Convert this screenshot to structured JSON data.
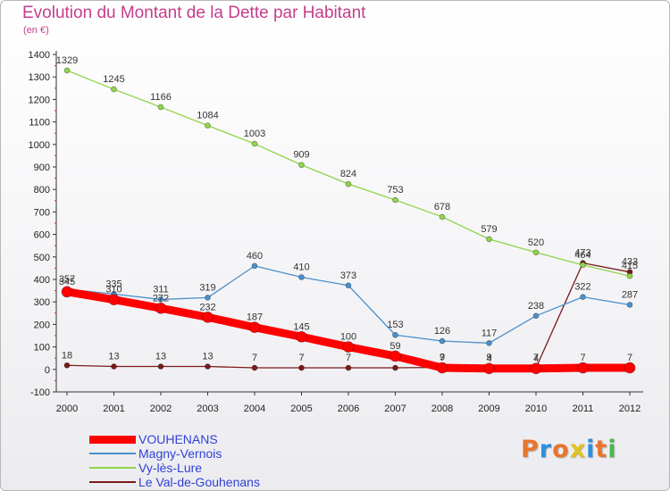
{
  "logo": {
    "text": "Proxiti",
    "colors": [
      "#e8752d",
      "#2d8fe0",
      "#e8752d",
      "#e0c31f",
      "#2d8fe0",
      "#e8752d",
      "#46b84a"
    ]
  },
  "chart_data": {
    "type": "line",
    "title": "Evolution du Montant de la Dette par Habitant",
    "subtitle": "(en €)",
    "xlabel": "",
    "ylabel": "",
    "x": [
      "2000",
      "2001",
      "2002",
      "2003",
      "2004",
      "2005",
      "2006",
      "2007",
      "2008",
      "2009",
      "2010",
      "2011",
      "2012"
    ],
    "ylim": [
      -100,
      1400
    ],
    "yticks": [
      -100,
      0,
      100,
      200,
      300,
      400,
      500,
      600,
      700,
      800,
      900,
      1000,
      1100,
      1200,
      1300,
      1400
    ],
    "grid": false,
    "legend_position": "bottom-left",
    "series": [
      {
        "name": "Le Val-de-Gouhenans",
        "color": "#7a1a1a",
        "values": [
          18,
          13,
          13,
          13,
          7,
          7,
          7,
          7,
          9,
          9,
          7,
          473,
          433
        ],
        "labels": [
          "18",
          "13",
          "13",
          "13",
          "7",
          "7",
          "7",
          "7",
          "9",
          "9",
          "7",
          "473",
          "433"
        ]
      },
      {
        "name": "Vy-lès-Lure",
        "color": "#8fd44a",
        "values": [
          1329,
          1245,
          1166,
          1084,
          1003,
          909,
          824,
          753,
          678,
          579,
          520,
          464,
          415
        ],
        "labels": [
          "1329",
          "1245",
          "1166",
          "1084",
          "1003",
          "909",
          "824",
          "753",
          "678",
          "579",
          "520",
          "464",
          "415"
        ]
      },
      {
        "name": "Magny-Vernois",
        "color": "#4a8fcc",
        "values": [
          357,
          335,
          311,
          319,
          460,
          410,
          373,
          153,
          126,
          117,
          238,
          322,
          287
        ],
        "labels": [
          "357",
          "335",
          "311",
          "319",
          "460",
          "410",
          "373",
          "153",
          "126",
          "117",
          "238",
          "322",
          "287"
        ]
      },
      {
        "name": "VOUHENANS",
        "color": "#ff0000",
        "values": [
          345,
          310,
          272,
          232,
          187,
          145,
          100,
          59,
          7,
          4,
          4,
          7,
          7
        ],
        "labels": [
          "345",
          "310",
          "272",
          "232",
          "187",
          "145",
          "100",
          "59",
          "7",
          "4",
          "4",
          "7",
          "7"
        ]
      }
    ],
    "legend_order": [
      "VOUHENANS",
      "Magny-Vernois",
      "Vy-lès-Lure",
      "Le Val-de-Gouhenans"
    ]
  }
}
